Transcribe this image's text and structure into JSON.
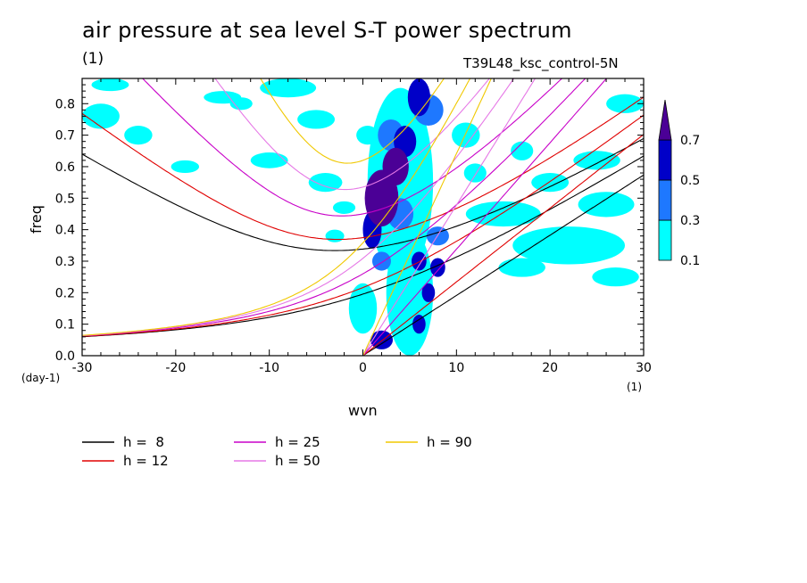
{
  "header": {
    "title": "air pressure at sea level S-T power spectrum",
    "subtitle": "(1)",
    "experiment": "T39L48_ksc_control-5N"
  },
  "chart_data": {
    "type": "heatmap",
    "title": "air pressure at sea level S-T power spectrum",
    "xlabel": "wvn",
    "ylabel": "freq",
    "x_unit": "(1)",
    "y_unit": "(day-1)",
    "xlim": [
      -30,
      30
    ],
    "ylim": [
      0.0,
      0.88
    ],
    "x_ticks": [
      -30,
      -20,
      -10,
      0,
      10,
      20,
      30
    ],
    "x_tick_labels": [
      "-30",
      "-20",
      "-10",
      "0",
      "10",
      "20",
      "30"
    ],
    "y_ticks": [
      0.0,
      0.1,
      0.2,
      0.3,
      0.4,
      0.5,
      0.6,
      0.7,
      0.8
    ],
    "y_tick_labels": [
      "0.0",
      "0.1",
      "0.2",
      "0.3",
      "0.4",
      "0.5",
      "0.6",
      "0.7",
      "0.8"
    ],
    "colorbar": {
      "levels": [
        "0.1",
        "0.3",
        "0.5",
        "0.7"
      ],
      "colors": [
        "#00ffff",
        "#1e78ff",
        "#0000c8",
        "#4b0096"
      ]
    },
    "legend": [
      {
        "label": "h =  8",
        "color": "#000000",
        "h": 8
      },
      {
        "label": "h = 12",
        "color": "#e00000",
        "h": 12
      },
      {
        "label": "h = 25",
        "color": "#c800c8",
        "h": 25
      },
      {
        "label": "h = 50",
        "color": "#e678e6",
        "h": 50
      },
      {
        "label": "h = 90",
        "color": "#f0c800",
        "h": 90
      }
    ],
    "power_blobs": [
      {
        "x": 2,
        "y": 0.5,
        "rx": 1.8,
        "ry": 0.09,
        "level": 3
      },
      {
        "x": 3.5,
        "y": 0.6,
        "rx": 1.4,
        "ry": 0.06,
        "level": 3
      },
      {
        "x": 4.5,
        "y": 0.68,
        "rx": 1.2,
        "ry": 0.05,
        "level": 2
      },
      {
        "x": 6,
        "y": 0.82,
        "rx": 1.2,
        "ry": 0.06,
        "level": 2
      },
      {
        "x": 1,
        "y": 0.4,
        "rx": 1,
        "ry": 0.06,
        "level": 2
      },
      {
        "x": 6,
        "y": 0.3,
        "rx": 0.8,
        "ry": 0.03,
        "level": 2
      },
      {
        "x": 8,
        "y": 0.28,
        "rx": 0.8,
        "ry": 0.03,
        "level": 2
      },
      {
        "x": 7,
        "y": 0.2,
        "rx": 0.7,
        "ry": 0.03,
        "level": 2
      },
      {
        "x": 6,
        "y": 0.1,
        "rx": 0.7,
        "ry": 0.03,
        "level": 2
      },
      {
        "x": 2,
        "y": 0.05,
        "rx": 1.2,
        "ry": 0.03,
        "level": 2
      },
      {
        "x": 3,
        "y": 0.7,
        "rx": 1.4,
        "ry": 0.05,
        "level": 1
      },
      {
        "x": 4,
        "y": 0.45,
        "rx": 1.4,
        "ry": 0.05,
        "level": 1
      },
      {
        "x": 8,
        "y": 0.38,
        "rx": 1.2,
        "ry": 0.03,
        "level": 1
      },
      {
        "x": 2,
        "y": 0.3,
        "rx": 1,
        "ry": 0.03,
        "level": 1
      },
      {
        "x": 7,
        "y": 0.78,
        "rx": 1.6,
        "ry": 0.05,
        "level": 1
      },
      {
        "x": 4,
        "y": 0.55,
        "rx": 3.5,
        "ry": 0.3,
        "level": 0
      },
      {
        "x": 5,
        "y": 0.2,
        "rx": 2.5,
        "ry": 0.2,
        "level": 0
      },
      {
        "x": 15,
        "y": 0.45,
        "rx": 4,
        "ry": 0.04,
        "level": 0
      },
      {
        "x": 22,
        "y": 0.35,
        "rx": 6,
        "ry": 0.06,
        "level": 0
      },
      {
        "x": 17,
        "y": 0.28,
        "rx": 2.5,
        "ry": 0.03,
        "level": 0
      },
      {
        "x": 26,
        "y": 0.48,
        "rx": 3,
        "ry": 0.04,
        "level": 0
      },
      {
        "x": 25,
        "y": 0.62,
        "rx": 2.5,
        "ry": 0.03,
        "level": 0
      },
      {
        "x": 20,
        "y": 0.55,
        "rx": 2,
        "ry": 0.03,
        "level": 0
      },
      {
        "x": 28,
        "y": 0.8,
        "rx": 2,
        "ry": 0.03,
        "level": 0
      },
      {
        "x": 27,
        "y": 0.25,
        "rx": 2.5,
        "ry": 0.03,
        "level": 0
      },
      {
        "x": -28,
        "y": 0.76,
        "rx": 2,
        "ry": 0.04,
        "level": 0
      },
      {
        "x": -24,
        "y": 0.7,
        "rx": 1.5,
        "ry": 0.03,
        "level": 0
      },
      {
        "x": -27,
        "y": 0.86,
        "rx": 2,
        "ry": 0.02,
        "level": 0
      },
      {
        "x": -8,
        "y": 0.85,
        "rx": 3,
        "ry": 0.03,
        "level": 0
      },
      {
        "x": -15,
        "y": 0.82,
        "rx": 2,
        "ry": 0.02,
        "level": 0
      },
      {
        "x": -5,
        "y": 0.75,
        "rx": 2,
        "ry": 0.03,
        "level": 0
      },
      {
        "x": 0.5,
        "y": 0.7,
        "rx": 1.2,
        "ry": 0.03,
        "level": 0
      },
      {
        "x": -10,
        "y": 0.62,
        "rx": 2,
        "ry": 0.025,
        "level": 0
      },
      {
        "x": -19,
        "y": 0.6,
        "rx": 1.5,
        "ry": 0.02,
        "level": 0
      },
      {
        "x": -4,
        "y": 0.55,
        "rx": 1.8,
        "ry": 0.03,
        "level": 0
      },
      {
        "x": -13,
        "y": 0.8,
        "rx": 1.2,
        "ry": 0.02,
        "level": 0
      },
      {
        "x": -2,
        "y": 0.47,
        "rx": 1.2,
        "ry": 0.02,
        "level": 0
      },
      {
        "x": 0,
        "y": 0.15,
        "rx": 1.5,
        "ry": 0.08,
        "level": 0
      },
      {
        "x": -3,
        "y": 0.38,
        "rx": 1,
        "ry": 0.02,
        "level": 0
      },
      {
        "x": 11,
        "y": 0.7,
        "rx": 1.5,
        "ry": 0.04,
        "level": 0
      },
      {
        "x": 17,
        "y": 0.65,
        "rx": 1.2,
        "ry": 0.03,
        "level": 0
      },
      {
        "x": 12,
        "y": 0.58,
        "rx": 1.2,
        "ry": 0.03,
        "level": 0
      }
    ]
  }
}
